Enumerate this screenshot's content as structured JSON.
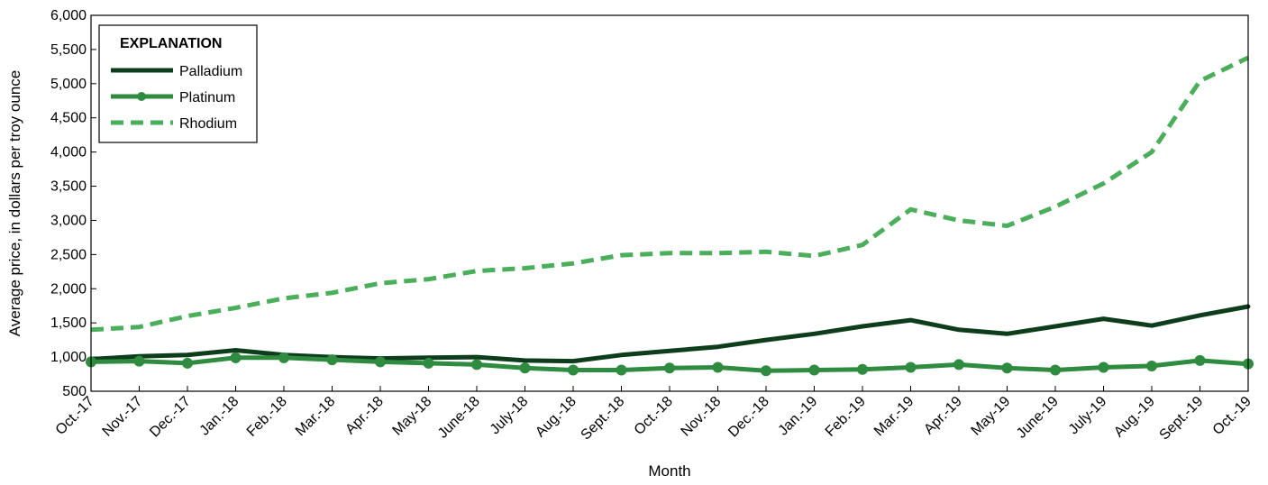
{
  "chart_data": {
    "type": "line",
    "title": "",
    "xlabel": "Month",
    "ylabel": "Average price, in dollars per troy ounce",
    "ylim": [
      500,
      6000
    ],
    "ytick_step": 500,
    "legend": {
      "title": "EXPLANATION",
      "placement": "top-left"
    },
    "categories": [
      "Oct.-17",
      "Nov.-17",
      "Dec.-17",
      "Jan.-18",
      "Feb.-18",
      "Mar.-18",
      "Apr.-18",
      "May-18",
      "June-18",
      "July-18",
      "Aug.-18",
      "Sept.-18",
      "Oct.-18",
      "Nov.-18",
      "Dec.-18",
      "Jan.-19",
      "Feb.-19",
      "Mar.-19",
      "Apr.-19",
      "May-19",
      "June-19",
      "July-19",
      "Aug.-19",
      "Sept.-19",
      "Oct.-19"
    ],
    "yticks": [
      "500",
      "1,000",
      "1,500",
      "2,000",
      "2,500",
      "3,000",
      "3,500",
      "4,000",
      "4,500",
      "5,000",
      "5,500",
      "6,000"
    ],
    "series": [
      {
        "name": "Palladium",
        "color": "#0e3d1c",
        "style": "solid",
        "markers": false,
        "values": [
          970,
          1010,
          1030,
          1100,
          1030,
          1000,
          980,
          990,
          1000,
          950,
          940,
          1030,
          1090,
          1150,
          1250,
          1340,
          1450,
          1540,
          1400,
          1340,
          1450,
          1560,
          1460,
          1610,
          1740
        ]
      },
      {
        "name": "Platinum",
        "color": "#2e8b3f",
        "style": "solid",
        "markers": true,
        "values": [
          930,
          940,
          910,
          990,
          990,
          960,
          930,
          910,
          890,
          840,
          810,
          810,
          840,
          850,
          800,
          810,
          820,
          850,
          890,
          840,
          810,
          850,
          870,
          950,
          900
        ]
      },
      {
        "name": "Rhodium",
        "color": "#4aae5a",
        "style": "dashed",
        "markers": false,
        "values": [
          1400,
          1440,
          1600,
          1720,
          1860,
          1940,
          2080,
          2140,
          2260,
          2300,
          2370,
          2490,
          2520,
          2520,
          2540,
          2480,
          2640,
          3160,
          3000,
          2920,
          3200,
          3540,
          4000,
          5040,
          5380
        ]
      }
    ]
  }
}
